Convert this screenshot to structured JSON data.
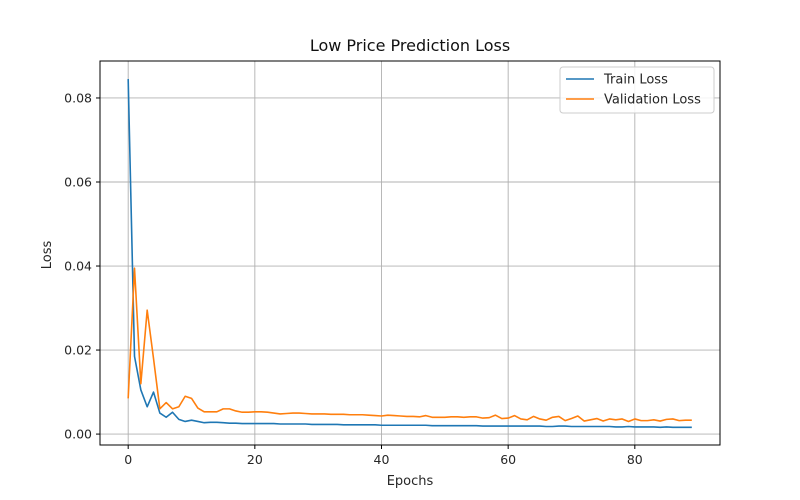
{
  "chart_data": {
    "type": "line",
    "title": "Low Price Prediction Loss",
    "xlabel": "Epochs",
    "ylabel": "Loss",
    "xlim": [
      -4.45,
      93.45
    ],
    "ylim": [
      -0.0026,
      0.0888
    ],
    "xticks": [
      0,
      20,
      40,
      60,
      80
    ],
    "yticks": [
      0.0,
      0.02,
      0.04,
      0.06,
      0.08
    ],
    "xtick_labels": [
      "0",
      "20",
      "40",
      "60",
      "80"
    ],
    "ytick_labels": [
      "0.00",
      "0.02",
      "0.04",
      "0.06",
      "0.08"
    ],
    "grid": true,
    "legend_position": "top-right",
    "series": [
      {
        "name": "Train Loss",
        "color": "#1f77b4",
        "x": [
          0,
          1,
          2,
          3,
          4,
          5,
          6,
          7,
          8,
          9,
          10,
          11,
          12,
          13,
          14,
          15,
          16,
          17,
          18,
          19,
          20,
          21,
          22,
          23,
          24,
          25,
          26,
          27,
          28,
          29,
          30,
          31,
          32,
          33,
          34,
          35,
          36,
          37,
          38,
          39,
          40,
          41,
          42,
          43,
          44,
          45,
          46,
          47,
          48,
          49,
          50,
          51,
          52,
          53,
          54,
          55,
          56,
          57,
          58,
          59,
          60,
          61,
          62,
          63,
          64,
          65,
          66,
          67,
          68,
          69,
          70,
          71,
          72,
          73,
          74,
          75,
          76,
          77,
          78,
          79,
          80,
          81,
          82,
          83,
          84,
          85,
          86,
          87,
          88,
          89
        ],
        "values": [
          0.0845,
          0.0185,
          0.0105,
          0.0065,
          0.01,
          0.005,
          0.004,
          0.0052,
          0.0035,
          0.003,
          0.0033,
          0.003,
          0.0027,
          0.0028,
          0.0028,
          0.0027,
          0.0026,
          0.0026,
          0.0025,
          0.0025,
          0.0025,
          0.0025,
          0.0025,
          0.0025,
          0.0024,
          0.0024,
          0.0024,
          0.0024,
          0.0024,
          0.0023,
          0.0023,
          0.0023,
          0.0023,
          0.0023,
          0.0022,
          0.0022,
          0.0022,
          0.0022,
          0.0022,
          0.0022,
          0.0021,
          0.0021,
          0.0021,
          0.0021,
          0.0021,
          0.0021,
          0.0021,
          0.0021,
          0.002,
          0.002,
          0.002,
          0.002,
          0.002,
          0.002,
          0.002,
          0.002,
          0.0019,
          0.0019,
          0.0019,
          0.0019,
          0.0019,
          0.0019,
          0.0019,
          0.0019,
          0.0019,
          0.0019,
          0.0018,
          0.0018,
          0.0019,
          0.0019,
          0.0018,
          0.0018,
          0.0018,
          0.0018,
          0.0018,
          0.0018,
          0.0018,
          0.0017,
          0.0017,
          0.0018,
          0.0017,
          0.0017,
          0.0017,
          0.0017,
          0.0016,
          0.0017,
          0.0016,
          0.0016,
          0.0016,
          0.0016
        ]
      },
      {
        "name": "Validation Loss",
        "color": "#ff7f0e",
        "x": [
          0,
          1,
          2,
          3,
          4,
          5,
          6,
          7,
          8,
          9,
          10,
          11,
          12,
          13,
          14,
          15,
          16,
          17,
          18,
          19,
          20,
          21,
          22,
          23,
          24,
          25,
          26,
          27,
          28,
          29,
          30,
          31,
          32,
          33,
          34,
          35,
          36,
          37,
          38,
          39,
          40,
          41,
          42,
          43,
          44,
          45,
          46,
          47,
          48,
          49,
          50,
          51,
          52,
          53,
          54,
          55,
          56,
          57,
          58,
          59,
          60,
          61,
          62,
          63,
          64,
          65,
          66,
          67,
          68,
          69,
          70,
          71,
          72,
          73,
          74,
          75,
          76,
          77,
          78,
          79,
          80,
          81,
          82,
          83,
          84,
          85,
          86,
          87,
          88,
          89
        ],
        "values": [
          0.0085,
          0.0395,
          0.012,
          0.0295,
          0.018,
          0.006,
          0.0075,
          0.006,
          0.0065,
          0.009,
          0.0085,
          0.0062,
          0.0053,
          0.0053,
          0.0053,
          0.006,
          0.006,
          0.0055,
          0.0052,
          0.0052,
          0.0053,
          0.0053,
          0.0052,
          0.005,
          0.0048,
          0.0049,
          0.005,
          0.005,
          0.0049,
          0.0048,
          0.0048,
          0.0048,
          0.0047,
          0.0047,
          0.0047,
          0.0046,
          0.0046,
          0.0046,
          0.0045,
          0.0044,
          0.0043,
          0.0045,
          0.0044,
          0.0043,
          0.0042,
          0.0042,
          0.0041,
          0.0044,
          0.004,
          0.004,
          0.004,
          0.0041,
          0.0041,
          0.004,
          0.0041,
          0.0041,
          0.0038,
          0.0039,
          0.0045,
          0.0037,
          0.0038,
          0.0044,
          0.0036,
          0.0034,
          0.0042,
          0.0036,
          0.0033,
          0.004,
          0.0042,
          0.0032,
          0.0037,
          0.0043,
          0.0031,
          0.0034,
          0.0037,
          0.0031,
          0.0036,
          0.0034,
          0.0036,
          0.003,
          0.0036,
          0.0032,
          0.0032,
          0.0034,
          0.0031,
          0.0035,
          0.0036,
          0.0032,
          0.0033,
          0.0033
        ]
      }
    ]
  }
}
